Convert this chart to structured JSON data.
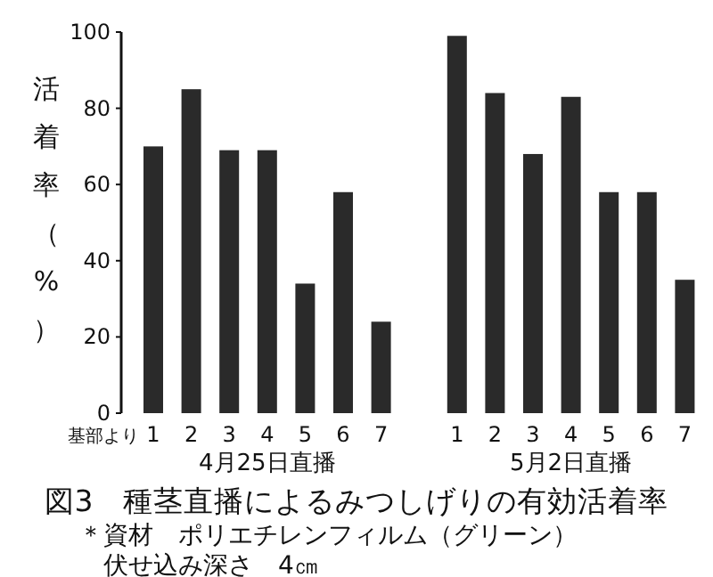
{
  "chart_data": {
    "type": "bar",
    "title": "図3　種茎直播によるみつしげりの有効活着率",
    "ylabel": "活着率（%）",
    "categories": [
      "1",
      "2",
      "3",
      "4",
      "5",
      "6",
      "7",
      null,
      "1",
      "2",
      "3",
      "4",
      "5",
      "6",
      "7"
    ],
    "values": [
      70,
      85,
      69,
      69,
      34,
      58,
      24,
      null,
      99,
      84,
      68,
      83,
      58,
      58,
      35
    ],
    "color": "#2a2a2a",
    "ylim": [
      0,
      100
    ],
    "yticks": [
      0,
      20,
      40,
      60,
      80,
      100
    ],
    "annotations": [
      "基部より",
      "4月25日直播",
      "5月2日直播",
      "＊資材　ポリエチレンフィルム（グリーン）",
      "伏せ込み深さ　4㎝"
    ]
  }
}
